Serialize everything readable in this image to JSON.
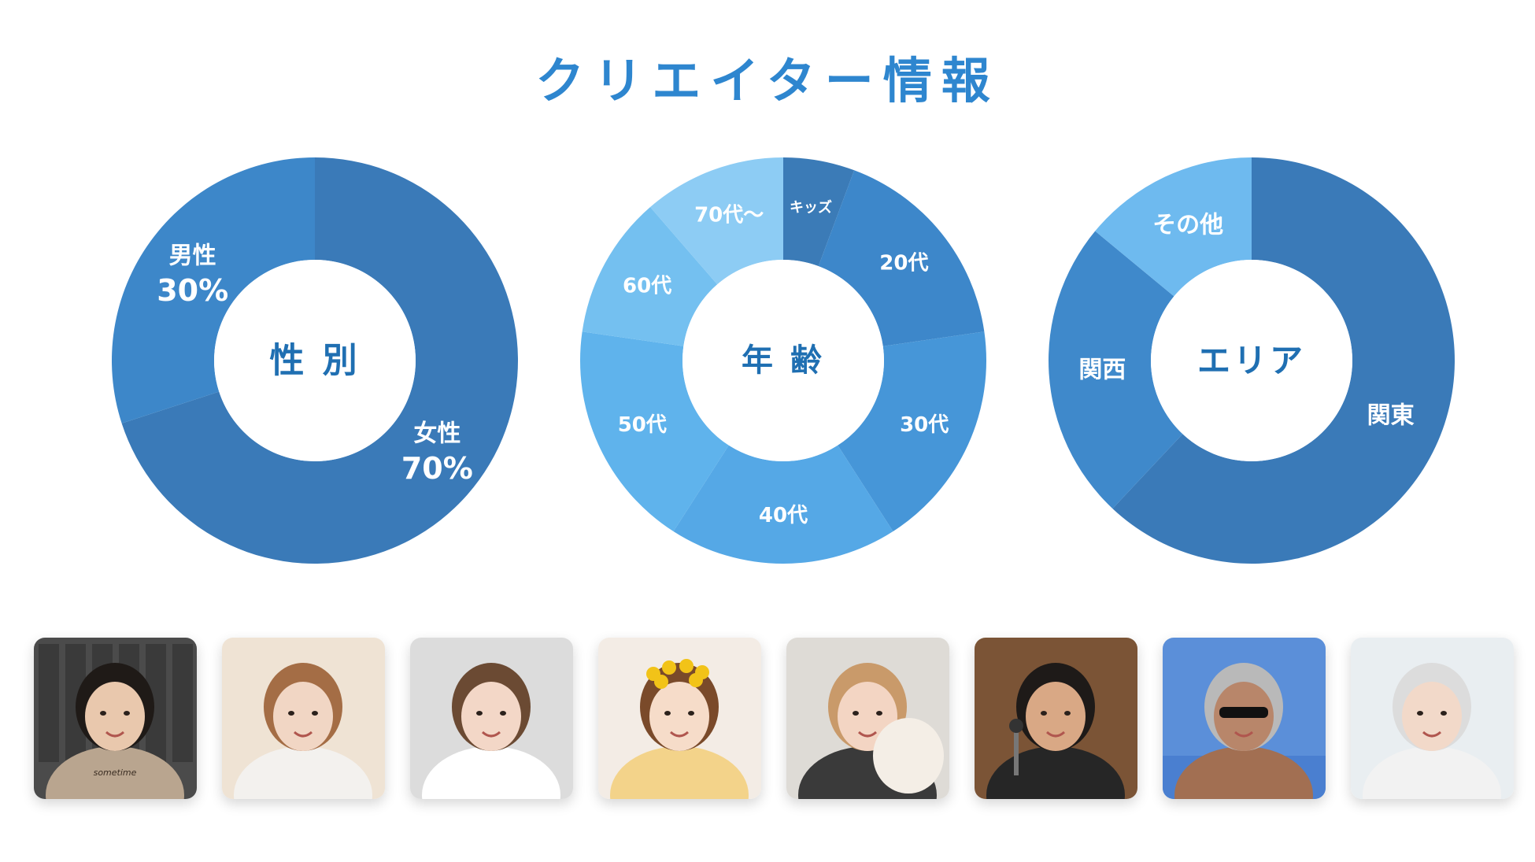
{
  "page": {
    "title": "クリエイター情報"
  },
  "chart_data": [
    {
      "type": "pie",
      "center_label": "性 別",
      "slices": [
        {
          "name": "女性",
          "percent_label": "70%",
          "value": 70,
          "color": "#3a7ab8"
        },
        {
          "name": "男性",
          "percent_label": "30%",
          "value": 30,
          "color": "#3d87c9"
        }
      ]
    },
    {
      "type": "pie",
      "center_label": "年 齢",
      "slices": [
        {
          "name": "キッズ",
          "value": 5,
          "color": "#3b7bb7"
        },
        {
          "name": "20代",
          "value": 15,
          "color": "#3d87ca"
        },
        {
          "name": "30代",
          "value": 16,
          "color": "#4696d8"
        },
        {
          "name": "40代",
          "value": 16,
          "color": "#55a8e6"
        },
        {
          "name": "50代",
          "value": 16,
          "color": "#5fb3ec"
        },
        {
          "name": "60代",
          "value": 10,
          "color": "#74c0f0"
        },
        {
          "name": "70代〜",
          "value": 10,
          "color": "#8dccf4"
        }
      ]
    },
    {
      "type": "pie",
      "center_label": "エリア",
      "slices": [
        {
          "name": "関東",
          "value": 62,
          "color": "#3a7ab8"
        },
        {
          "name": "関西",
          "value": 24,
          "color": "#3f89cb"
        },
        {
          "name": "その他",
          "value": 14,
          "color": "#6ebaef"
        }
      ]
    }
  ],
  "photos": [
    {
      "name": "creator-photo-girl-bookshelf",
      "caption": "sometime",
      "bg": "#4b4b4b",
      "skin": "#e9c8ad",
      "hair": "#1f1a17",
      "shirt": "#b9a58f"
    },
    {
      "name": "creator-photo-woman-long-hair",
      "bg": "#efe3d4",
      "skin": "#f1d6c4",
      "hair": "#a46d45",
      "shirt": "#f3f1ee"
    },
    {
      "name": "creator-photo-woman-white-jacket",
      "bg": "#dcdcdc",
      "skin": "#f3d7c7",
      "hair": "#6b4a33",
      "shirt": "#ffffff"
    },
    {
      "name": "creator-photo-baby-flowers",
      "bg": "#f3ece5",
      "skin": "#f6dcc9",
      "hair": "#7a4a2a",
      "shirt": "#f3d38a"
    },
    {
      "name": "creator-photo-woman-with-dog",
      "bg": "#dedbd6",
      "skin": "#f3d5c3",
      "hair": "#c99a6a",
      "shirt": "#3a3a3a"
    },
    {
      "name": "creator-photo-man-guitar-mic",
      "bg": "#7b5436",
      "skin": "#d9a885",
      "hair": "#1e1a18",
      "shirt": "#262626"
    },
    {
      "name": "creator-photo-man-shirtless-sky",
      "bg": "#5b8fd9",
      "skin": "#b8866a",
      "hair": "#b9b9b9",
      "shirt": "#a26f52"
    },
    {
      "name": "creator-photo-woman-silver-hair",
      "bg": "#e9eef1",
      "skin": "#f2d9c9",
      "hair": "#dcdcdc",
      "shirt": "#f2f2f2"
    }
  ]
}
